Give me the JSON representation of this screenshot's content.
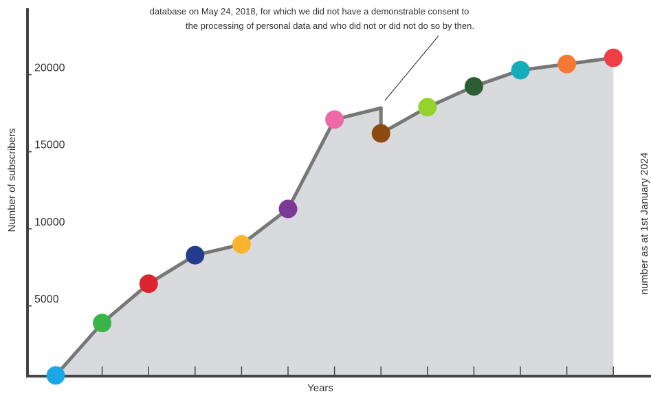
{
  "chart_data": {
    "type": "area",
    "title": "",
    "xlabel": "Years",
    "ylabel": "Number of subscribers",
    "right_label": "number as at 1st January 2024",
    "annotation": {
      "line1": "database on May 24, 2018, for which we did not have a demonstrable consent to",
      "line2": "the processing of personal data and who did not or did not do so by then."
    },
    "y_ticks": [
      "5000",
      "10000",
      "15000",
      "20000"
    ],
    "y_tick_values": [
      5000,
      10000,
      15000,
      20000
    ],
    "ylim": [
      0,
      22500
    ],
    "grid": false,
    "x_index": [
      0,
      1,
      2,
      3,
      4,
      5,
      6,
      7,
      8,
      9,
      10,
      11,
      12
    ],
    "values": [
      0,
      3400,
      5950,
      7800,
      8500,
      10800,
      16600,
      15700,
      17400,
      18750,
      19800,
      20200,
      20600
    ],
    "pre_drop_value": 17350,
    "point_colors": [
      "#1aa7e8",
      "#3bb54a",
      "#d9262e",
      "#233c8e",
      "#fbb42d",
      "#7a3a96",
      "#ee6aa7",
      "#8b4a10",
      "#95d22c",
      "#2d5d34",
      "#13adbb",
      "#f47a33",
      "#ef3e45"
    ],
    "colors": {
      "line": "#777777",
      "area": "#d9dadd",
      "axis": "#444444"
    }
  }
}
